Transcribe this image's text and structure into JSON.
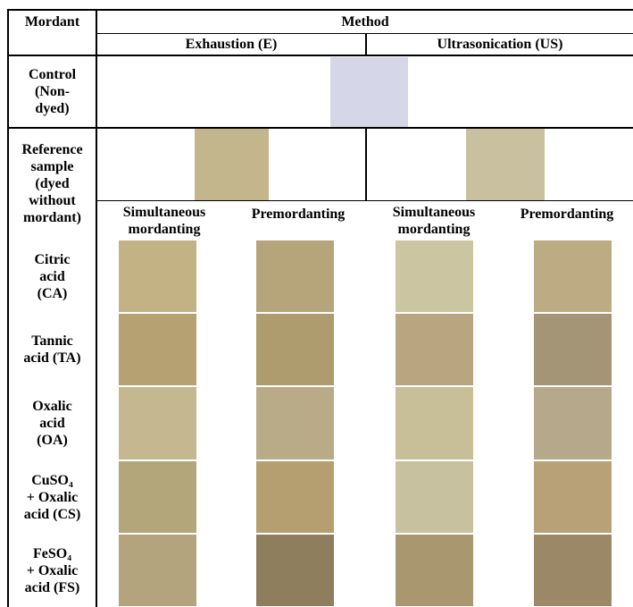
{
  "header": {
    "mordant": "Mordant",
    "method": "Method",
    "methods": [
      "Exhaustion (E)",
      "Ultrasonication (US)"
    ],
    "sub_methods": [
      "Simultaneous\nmordanting",
      "Premordanting",
      "Simultaneous\nmordanting",
      "Premordanting"
    ]
  },
  "control": "Control\n(Non-\ndyed)",
  "reference": "Reference\nsample\n(dyed\nwithout\nmordant)",
  "rows": [
    "Citric\nacid\n(CA)",
    "Tannic\nacid (TA)",
    "Oxalic\nacid\n(OA)",
    "CuSO₄\n+ Oxalic\nacid (CS)",
    "FeSO₄\n+ Oxalic\nacid (FS)"
  ]
}
